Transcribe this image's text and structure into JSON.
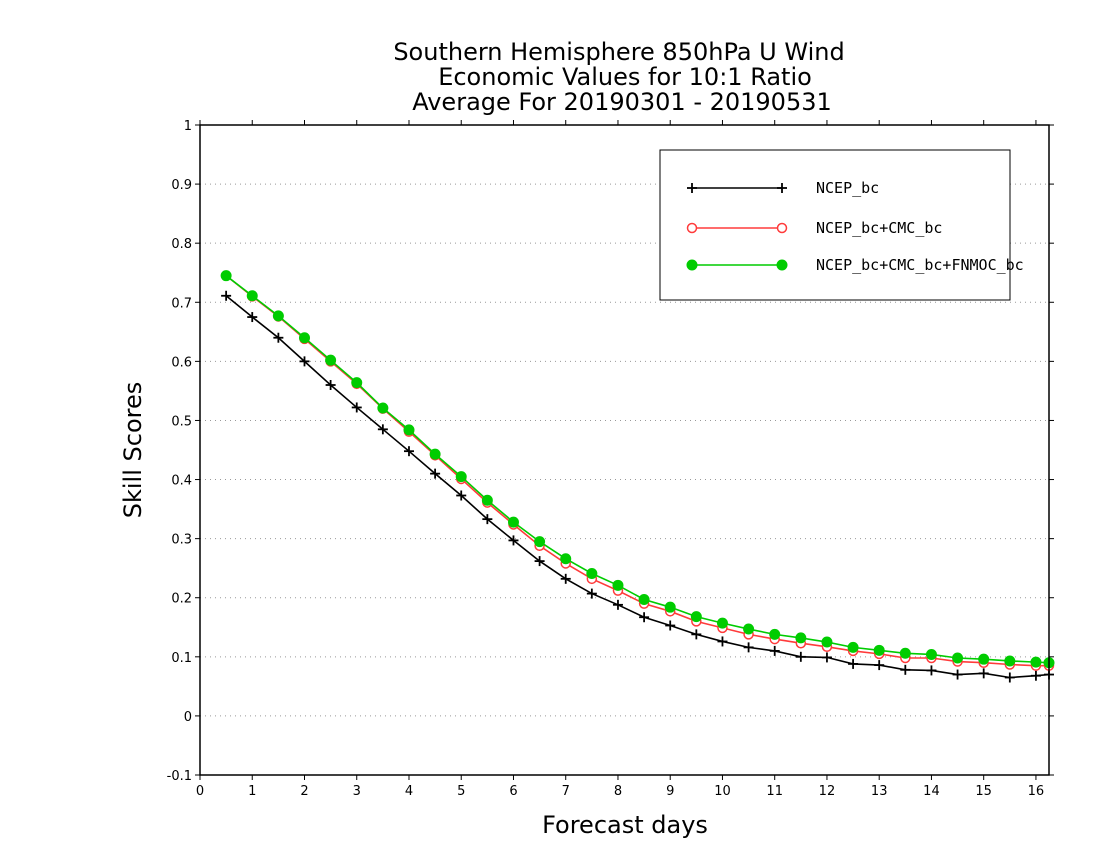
{
  "chart_data": {
    "type": "line",
    "title": [
      "Southern Hemisphere 850hPa U Wind",
      "Economic Values for 10:1 Ratio",
      "Average For 20190301 - 20190531"
    ],
    "xlabel": "Forecast days",
    "ylabel": "Skill Scores",
    "xlim": [
      0,
      16.25
    ],
    "ylim": [
      -0.1,
      1
    ],
    "xticks": [
      "0",
      "1",
      "2",
      "3",
      "4",
      "5",
      "6",
      "7",
      "8",
      "9",
      "10",
      "11",
      "12",
      "13",
      "14",
      "15",
      "16"
    ],
    "yticks": [
      "-0.1",
      "0",
      "0.1",
      "0.2",
      "0.3",
      "0.4",
      "0.5",
      "0.6",
      "0.7",
      "0.8",
      "0.9",
      "1"
    ],
    "grid": true,
    "legend_position": "top-right",
    "x": [
      0.5,
      1,
      1.5,
      2,
      2.5,
      3,
      3.5,
      4,
      4.5,
      5,
      5.5,
      6,
      6.5,
      7,
      7.5,
      8,
      8.5,
      9,
      9.5,
      10,
      10.5,
      11,
      11.5,
      12,
      12.5,
      13,
      13.5,
      14,
      14.5,
      15,
      15.5,
      16,
      16.25
    ],
    "series": [
      {
        "name": "NCEP_bc",
        "color": "#000000",
        "marker": "plus",
        "values": [
          0.711,
          0.675,
          0.64,
          0.6,
          0.56,
          0.522,
          0.485,
          0.448,
          0.41,
          0.373,
          0.333,
          0.297,
          0.262,
          0.232,
          0.207,
          0.188,
          0.167,
          0.153,
          0.138,
          0.126,
          0.116,
          0.11,
          0.1,
          0.099,
          0.088,
          0.086,
          0.078,
          0.077,
          0.07,
          0.072,
          0.065,
          0.068,
          0.07
        ]
      },
      {
        "name": "NCEP_bc+CMC_bc",
        "color": "#ff3b3b",
        "marker": "open-circle",
        "values": [
          0.745,
          0.71,
          0.676,
          0.638,
          0.6,
          0.562,
          0.52,
          0.481,
          0.441,
          0.401,
          0.361,
          0.324,
          0.288,
          0.258,
          0.232,
          0.212,
          0.19,
          0.177,
          0.16,
          0.149,
          0.138,
          0.13,
          0.123,
          0.117,
          0.11,
          0.105,
          0.098,
          0.098,
          0.092,
          0.09,
          0.087,
          0.085,
          0.085
        ]
      },
      {
        "name": "NCEP_bc+CMC_bc+FNMOC_bc",
        "color": "#00cc00",
        "marker": "filled-circle",
        "values": [
          0.745,
          0.711,
          0.677,
          0.64,
          0.602,
          0.564,
          0.521,
          0.484,
          0.443,
          0.405,
          0.365,
          0.328,
          0.295,
          0.266,
          0.241,
          0.221,
          0.197,
          0.184,
          0.168,
          0.157,
          0.147,
          0.138,
          0.132,
          0.125,
          0.116,
          0.111,
          0.106,
          0.104,
          0.098,
          0.096,
          0.093,
          0.091,
          0.09
        ]
      }
    ]
  }
}
